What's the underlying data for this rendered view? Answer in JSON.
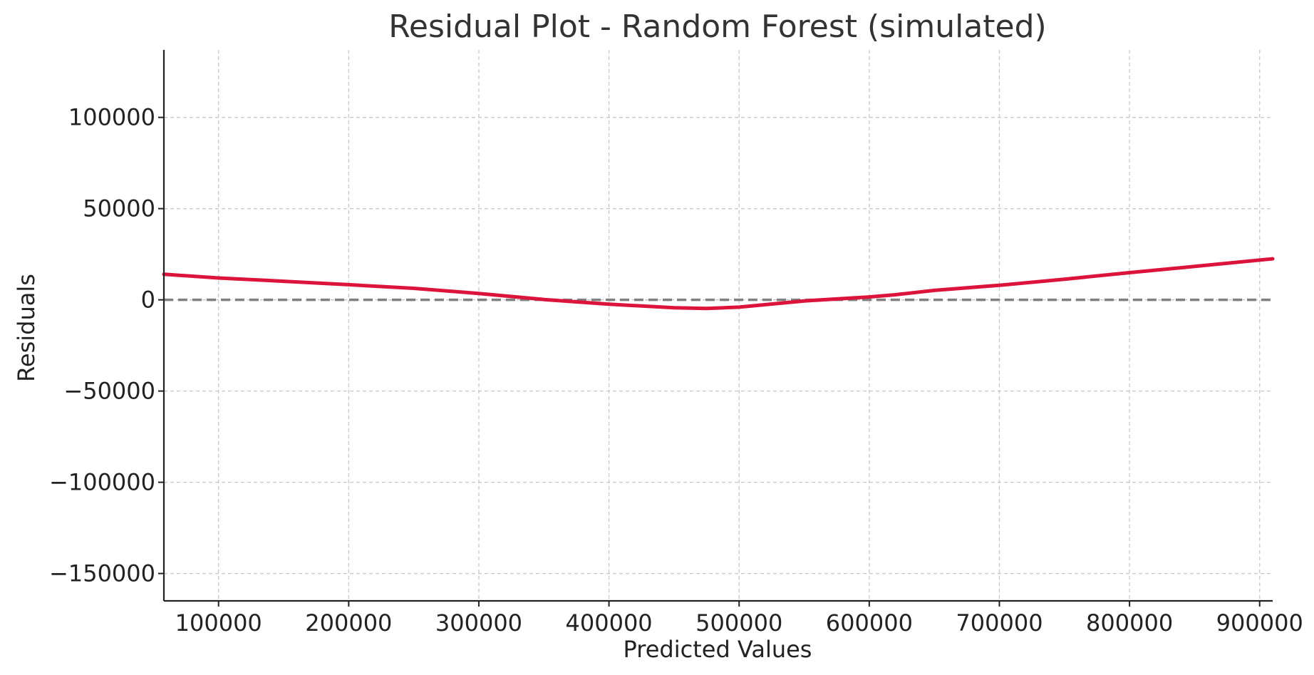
{
  "chart_data": {
    "type": "line",
    "title": "Residual Plot - Random Forest (simulated)",
    "xlabel": "Predicted Values",
    "ylabel": "Residuals",
    "xlim": [
      58000,
      910000
    ],
    "ylim": [
      -165000,
      137000
    ],
    "x_ticks": [
      100000,
      200000,
      300000,
      400000,
      500000,
      600000,
      700000,
      800000,
      900000
    ],
    "x_tick_labels": [
      "100000",
      "200000",
      "300000",
      "400000",
      "500000",
      "600000",
      "700000",
      "800000",
      "900000"
    ],
    "y_ticks": [
      100000,
      50000,
      0,
      -50000,
      -100000,
      -150000
    ],
    "y_tick_labels": [
      "100000",
      "50000",
      "0",
      "−50000",
      "−100000",
      "−150000"
    ],
    "grid": true,
    "series": [
      {
        "color": "#dc143c",
        "x": [
          58000,
          100000,
          150000,
          200000,
          250000,
          300000,
          350000,
          400000,
          450000,
          475000,
          500000,
          550000,
          600000,
          620000,
          650000,
          700000,
          750000,
          800000,
          850000,
          910000
        ],
        "y": [
          14000,
          12000,
          10200,
          8300,
          6300,
          3500,
          200,
          -2400,
          -4300,
          -4700,
          -4000,
          -600,
          1600,
          2800,
          5200,
          8000,
          11300,
          14900,
          18300,
          22500
        ]
      }
    ],
    "reference_line": {
      "y": 0,
      "color": "#808080",
      "style": "dashed"
    }
  }
}
